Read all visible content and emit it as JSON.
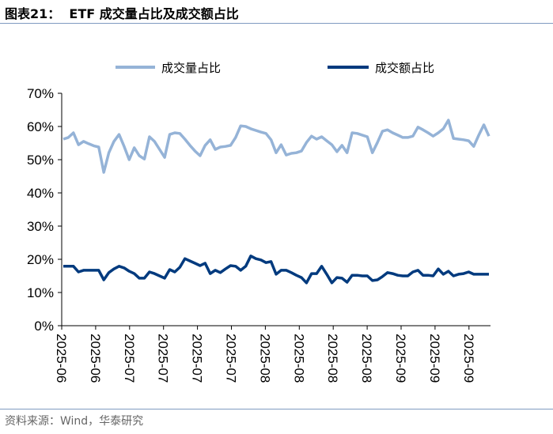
{
  "header": {
    "title": "图表21：  ETF 成交量占比及成交额占比"
  },
  "footer": {
    "source": "资料来源：Wind，华泰研究"
  },
  "chart_data": {
    "type": "line",
    "title": "ETF 成交量占比及成交额占比",
    "xlabel": "",
    "ylabel": "",
    "ylim": [
      0,
      70
    ],
    "yticks": [
      "0%",
      "10%",
      "20%",
      "30%",
      "40%",
      "50%",
      "60%",
      "70%"
    ],
    "xtick_labels": [
      "2025-06",
      "2025-06",
      "2025-07",
      "2025-07",
      "2025-07",
      "2025-07",
      "2025-08",
      "2025-08",
      "2025-08",
      "2025-08",
      "2025-09",
      "2025-09",
      "2025-09"
    ],
    "grid": false,
    "legend_position": "top",
    "series": [
      {
        "name": "成交量占比",
        "color": "#95B3D7",
        "values": [
          56.2,
          56.7,
          58.1,
          54.5,
          55.5,
          54.8,
          54.2,
          53.8,
          46.2,
          52.1,
          55.5,
          57.6,
          54.0,
          50.0,
          53.6,
          51.2,
          50.2,
          56.9,
          55.5,
          53.1,
          50.7,
          57.6,
          58.1,
          57.9,
          56.2,
          54.3,
          52.6,
          51.2,
          54.3,
          56.0,
          53.1,
          53.8,
          54.0,
          54.3,
          56.7,
          60.2,
          60.0,
          59.3,
          58.8,
          58.3,
          57.9,
          56.0,
          52.1,
          54.5,
          51.4,
          51.9,
          52.1,
          52.6,
          55.2,
          57.1,
          56.2,
          56.9,
          55.7,
          54.5,
          52.4,
          54.3,
          52.1,
          58.1,
          57.9,
          57.4,
          56.9,
          52.1,
          55.2,
          58.6,
          59.0,
          58.1,
          57.4,
          56.7,
          56.7,
          57.1,
          59.8,
          59.0,
          58.1,
          57.1,
          58.1,
          59.3,
          61.9,
          56.4,
          56.2,
          56.0,
          55.7,
          54.0,
          57.4,
          60.5,
          57.1
        ]
      },
      {
        "name": "成交额占比",
        "color": "#003A7E",
        "values": [
          17.9,
          17.9,
          17.9,
          16.2,
          16.7,
          16.7,
          16.7,
          16.7,
          13.8,
          16.0,
          17.1,
          17.9,
          17.4,
          16.4,
          15.7,
          14.3,
          14.3,
          16.2,
          15.7,
          15.0,
          14.3,
          16.9,
          16.2,
          17.6,
          20.2,
          19.5,
          18.8,
          18.1,
          18.8,
          15.7,
          16.7,
          16.0,
          17.1,
          18.1,
          17.9,
          16.7,
          17.9,
          21.0,
          20.2,
          19.8,
          19.0,
          19.3,
          15.5,
          16.7,
          16.7,
          16.0,
          15.2,
          14.5,
          12.9,
          15.7,
          15.7,
          17.9,
          15.5,
          12.9,
          14.5,
          14.3,
          13.1,
          15.2,
          15.2,
          15.0,
          15.0,
          13.6,
          13.8,
          14.8,
          16.0,
          15.7,
          15.2,
          15.0,
          15.0,
          16.2,
          16.7,
          15.2,
          15.2,
          15.0,
          17.1,
          15.5,
          16.4,
          15.0,
          15.5,
          15.7,
          16.2,
          15.5,
          15.5,
          15.5,
          15.5
        ]
      }
    ]
  }
}
